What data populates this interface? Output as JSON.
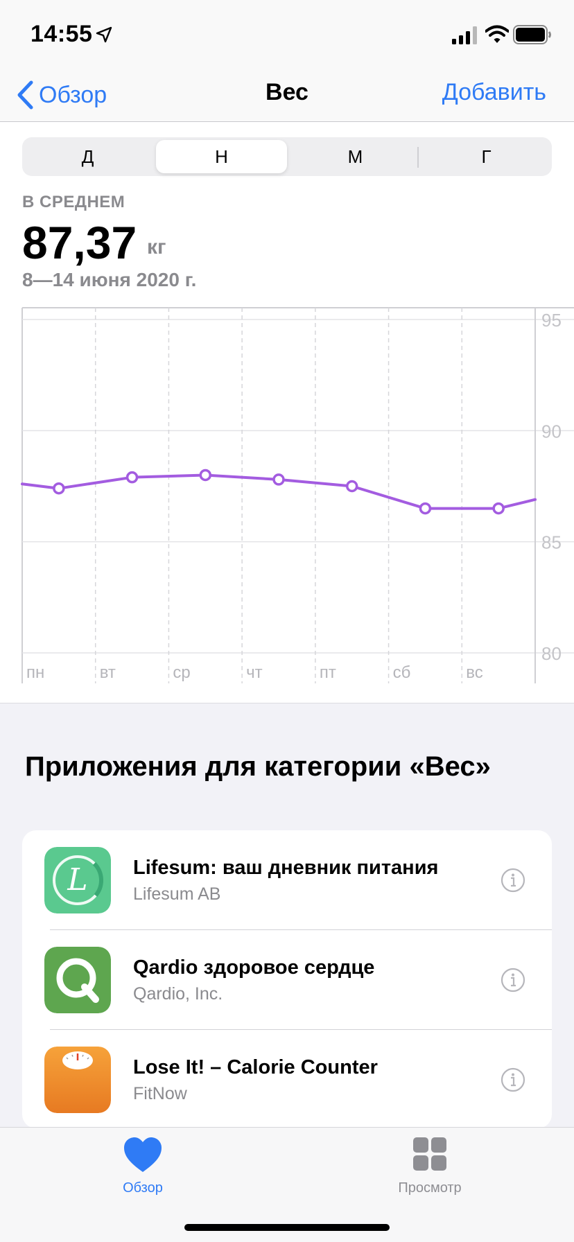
{
  "status_bar": {
    "time": "14:55"
  },
  "nav": {
    "back_label": "Обзор",
    "title": "Вес",
    "add_label": "Добавить"
  },
  "segments": {
    "items": [
      "Д",
      "Н",
      "М",
      "Г"
    ],
    "selected": "Н"
  },
  "summary": {
    "label": "В СРЕДНЕМ",
    "value": "87,37",
    "unit": "кг",
    "range": "8—14 июня 2020 г."
  },
  "chart_data": {
    "type": "line",
    "categories": [
      "пн",
      "вт",
      "ср",
      "чт",
      "пт",
      "сб",
      "вс"
    ],
    "series": [
      {
        "values": [
          87.4,
          87.9,
          88.0,
          87.8,
          87.5,
          86.5,
          86.5
        ]
      }
    ],
    "edge_values": {
      "before": 87.6,
      "after": 86.9
    },
    "y_ticks": [
      "95",
      "90",
      "85",
      "80"
    ],
    "ylim": [
      80,
      95
    ],
    "color": "#a35ce0",
    "grid": true
  },
  "apps": {
    "title": "Приложения для категории «Вес»",
    "items": [
      {
        "name": "Lifesum: ваш дневник питания",
        "developer": "Lifesum AB",
        "icon": "lifesum-icon"
      },
      {
        "name": "Qardio здоровое сердце",
        "developer": "Qardio, Inc.",
        "icon": "qardio-icon"
      },
      {
        "name": "Lose It! – Calorie Counter",
        "developer": "FitNow",
        "icon": "loseit-icon"
      }
    ]
  },
  "tabs": {
    "overview_label": "Обзор",
    "browse_label": "Просмотр",
    "active_color": "#2f7bf5",
    "inactive_color": "#8e8e93"
  }
}
